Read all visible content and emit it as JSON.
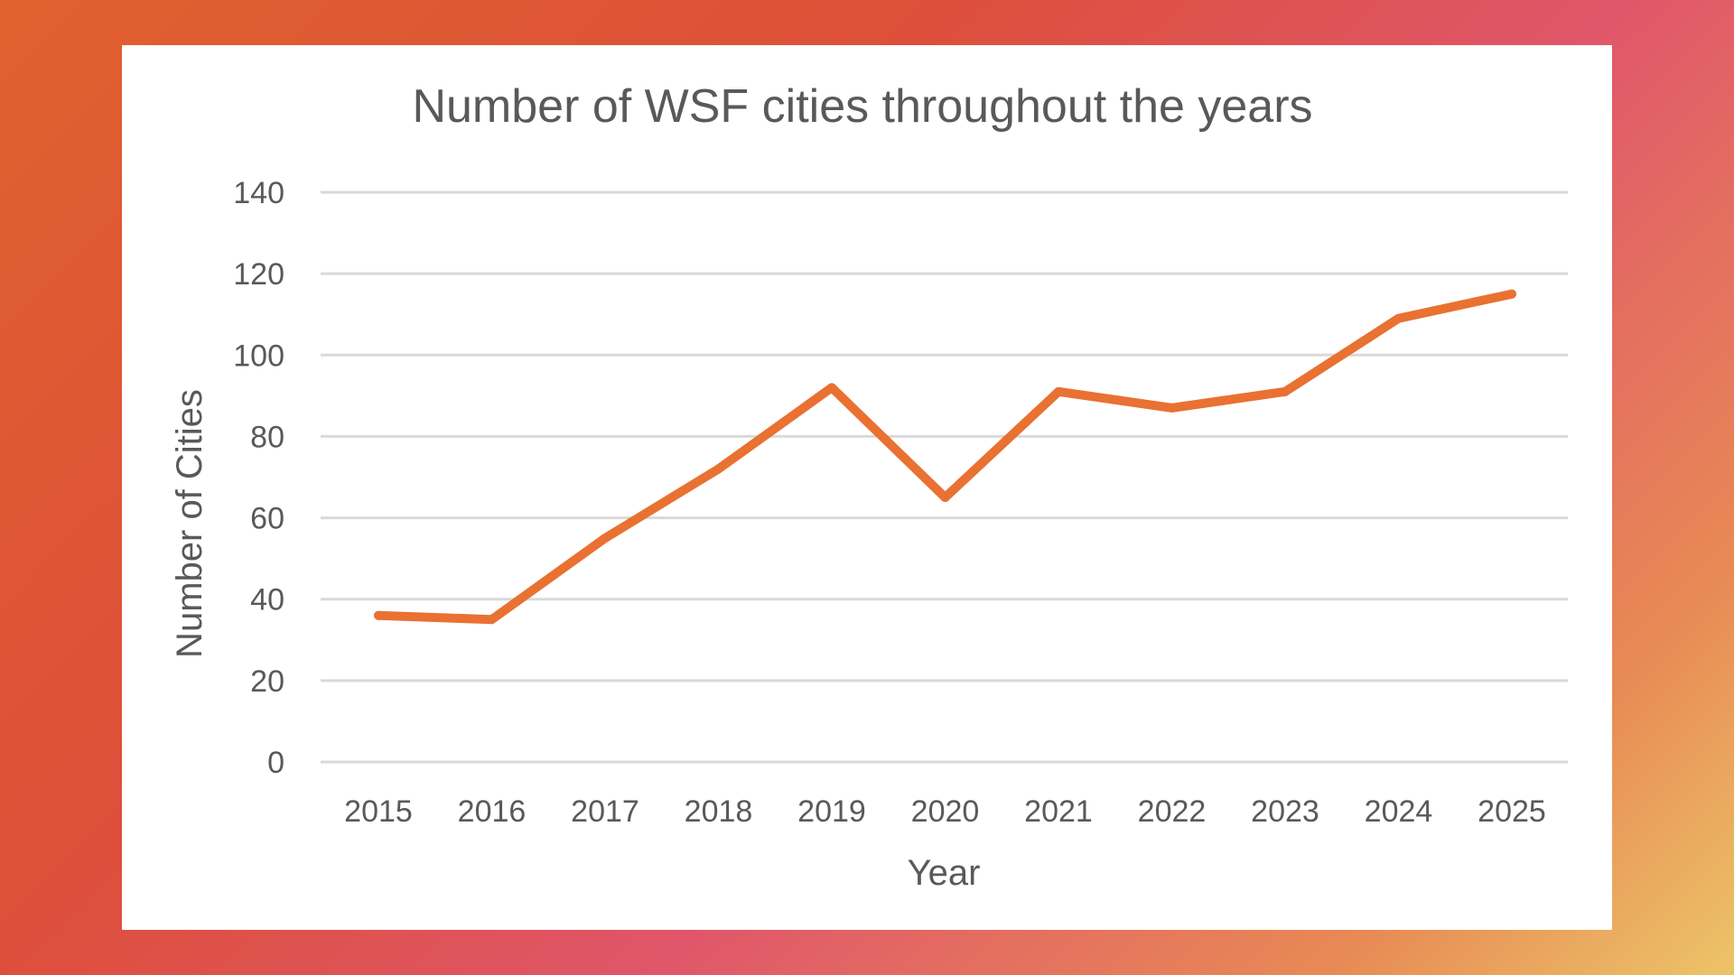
{
  "chart_data": {
    "type": "line",
    "title": "Number of WSF cities throughout the years",
    "xlabel": "Year",
    "ylabel": "Number of Cities",
    "categories": [
      "2015",
      "2016",
      "2017",
      "2018",
      "2019",
      "2020",
      "2021",
      "2022",
      "2023",
      "2024",
      "2025"
    ],
    "series": [
      {
        "name": "Number of Cities",
        "values": [
          36,
          35,
          55,
          72,
          92,
          65,
          91,
          87,
          91,
          109,
          115
        ],
        "color": "#E97132"
      }
    ],
    "ylim": [
      0,
      140
    ],
    "yticks": [
      0,
      20,
      40,
      60,
      80,
      100,
      120,
      140
    ],
    "grid": true,
    "legend": "none"
  }
}
